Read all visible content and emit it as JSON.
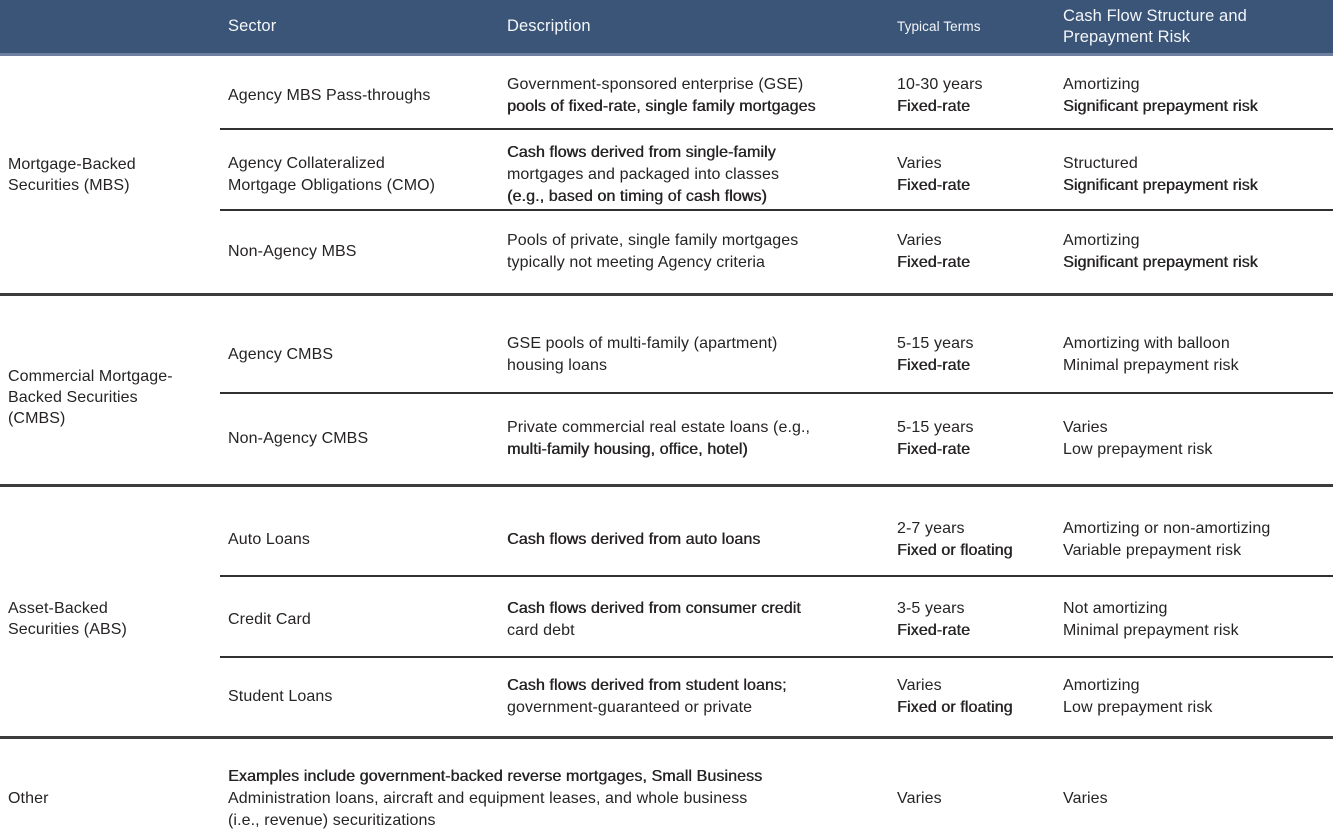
{
  "table": {
    "colors": {
      "header_bg": "#3a5577",
      "header_border": "#6e80a0",
      "header_text": "#f4f6f9",
      "body_text": "#262324",
      "row_rule": "#313131",
      "section_rule": "#3c3c3c"
    },
    "header": {
      "sector_label": "Sector",
      "description_label": "Description",
      "typical_terms_label": "Typical Terms",
      "cash_flow_lines": [
        "Cash Flow Structure and",
        "Prepayment Risk"
      ]
    },
    "sections": [
      {
        "category_lines": [
          "Mortgage-Backed",
          "Securities (MBS)"
        ],
        "rows": [
          {
            "sector": [
              {
                "t": "Agency MBS Pass-throughs",
                "b": false
              }
            ],
            "description": [
              {
                "t": "Government-sponsored enterprise (GSE)",
                "b": false
              },
              {
                "t": "pools of fixed-rate, single family mortgages",
                "b": true
              }
            ],
            "terms": [
              {
                "t": "10-30 years",
                "b": false
              },
              {
                "t": "Fixed-rate",
                "b": true
              }
            ],
            "cash_flow": [
              {
                "t": "Amortizing",
                "b": false
              },
              {
                "t": "Significant prepayment risk",
                "b": true
              }
            ]
          },
          {
            "sector": [
              {
                "t": "Agency Collateralized",
                "b": false
              },
              {
                "t": "Mortgage Obligations (CMO)",
                "b": false
              }
            ],
            "description": [
              {
                "t": "Cash flows derived from single-family",
                "b": true
              },
              {
                "t": "mortgages and packaged into classes",
                "b": false
              },
              {
                "t": "(e.g., based on timing of cash flows)",
                "b": true
              }
            ],
            "terms": [
              {
                "t": "Varies",
                "b": false
              },
              {
                "t": "Fixed-rate",
                "b": true
              }
            ],
            "cash_flow": [
              {
                "t": "Structured",
                "b": false
              },
              {
                "t": "Significant prepayment risk",
                "b": true
              }
            ]
          },
          {
            "sector": [
              {
                "t": "Non-Agency MBS",
                "b": false
              }
            ],
            "description": [
              {
                "t": "Pools of private, single family mortgages",
                "b": false
              },
              {
                "t": "typically not meeting Agency criteria",
                "b": false
              }
            ],
            "terms": [
              {
                "t": "Varies",
                "b": false
              },
              {
                "t": "Fixed-rate",
                "b": true
              }
            ],
            "cash_flow": [
              {
                "t": "Amortizing",
                "b": false
              },
              {
                "t": "Significant prepayment risk",
                "b": true
              }
            ]
          }
        ]
      },
      {
        "category_lines": [
          "Commercial Mortgage-",
          "Backed Securities",
          "(CMBS)"
        ],
        "rows": [
          {
            "sector": [
              {
                "t": "Agency CMBS",
                "b": false
              }
            ],
            "description": [
              {
                "t": "GSE pools of multi-family (apartment)",
                "b": false
              },
              {
                "t": "housing loans",
                "b": false
              }
            ],
            "terms": [
              {
                "t": "5-15 years",
                "b": false
              },
              {
                "t": "Fixed-rate",
                "b": true
              }
            ],
            "cash_flow": [
              {
                "t": "Amortizing with balloon",
                "b": false
              },
              {
                "t": "Minimal prepayment risk",
                "b": false
              }
            ]
          },
          {
            "sector": [
              {
                "t": "Non-Agency CMBS",
                "b": false
              }
            ],
            "description": [
              {
                "t": "Private commercial real estate loans (e.g.,",
                "b": false
              },
              {
                "t": "multi-family housing, office, hotel)",
                "b": true
              }
            ],
            "terms": [
              {
                "t": "5-15 years",
                "b": false
              },
              {
                "t": "Fixed-rate",
                "b": true
              }
            ],
            "cash_flow": [
              {
                "t": "Varies",
                "b": false
              },
              {
                "t": "Low prepayment risk",
                "b": false
              }
            ]
          }
        ]
      },
      {
        "category_lines": [
          "Asset-Backed",
          "Securities (ABS)"
        ],
        "rows": [
          {
            "sector": [
              {
                "t": "Auto Loans",
                "b": false
              }
            ],
            "description": [
              {
                "t": "Cash flows derived from auto loans",
                "b": true
              }
            ],
            "terms": [
              {
                "t": "2-7 years",
                "b": false
              },
              {
                "t": "Fixed or floating",
                "b": true
              }
            ],
            "cash_flow": [
              {
                "t": "Amortizing or non-amortizing",
                "b": false
              },
              {
                "t": "Variable prepayment risk",
                "b": false
              }
            ]
          },
          {
            "sector": [
              {
                "t": "Credit Card",
                "b": false
              }
            ],
            "description": [
              {
                "t": "Cash flows derived from consumer credit",
                "b": true
              },
              {
                "t": "card debt",
                "b": false
              }
            ],
            "terms": [
              {
                "t": "3-5 years",
                "b": false
              },
              {
                "t": "Fixed-rate",
                "b": true
              }
            ],
            "cash_flow": [
              {
                "t": "Not amortizing",
                "b": false
              },
              {
                "t": "Minimal prepayment risk",
                "b": false
              }
            ]
          },
          {
            "sector": [
              {
                "t": "Student Loans",
                "b": false
              }
            ],
            "description": [
              {
                "t": "Cash flows derived from student loans;",
                "b": true
              },
              {
                "t": "government-guaranteed or private",
                "b": false
              }
            ],
            "terms": [
              {
                "t": "Varies",
                "b": false
              },
              {
                "t": "Fixed or floating",
                "b": true
              }
            ],
            "cash_flow": [
              {
                "t": "Amortizing",
                "b": false
              },
              {
                "t": "Low prepayment risk",
                "b": false
              }
            ]
          }
        ]
      },
      {
        "category_lines": [
          "Other"
        ],
        "rows": [
          {
            "sector": [],
            "description": [
              {
                "t": "Examples include government-backed reverse mortgages, Small Business",
                "b": true
              },
              {
                "t": "Administration loans, aircraft and equipment leases, and whole business",
                "b": false
              },
              {
                "t": "(i.e., revenue) securitizations",
                "b": false
              }
            ],
            "terms": [
              {
                "t": "Varies",
                "b": false
              }
            ],
            "cash_flow": [
              {
                "t": "Varies",
                "b": false
              }
            ]
          }
        ]
      }
    ]
  }
}
